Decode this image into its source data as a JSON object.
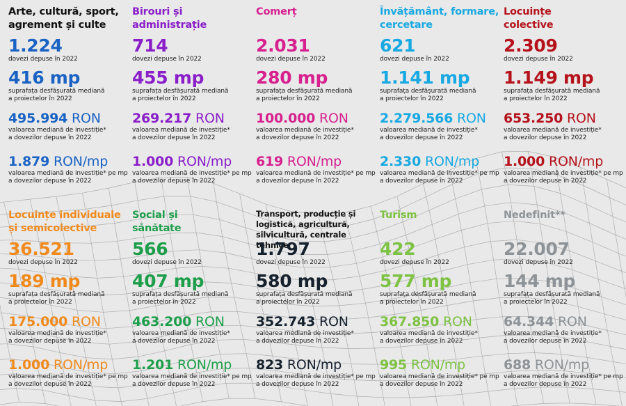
{
  "labels": {
    "dossiers": "dovezi depuse în 2022",
    "area_l1": "suprafața desfășurată mediană",
    "area_l2": "a proiectelor în 2022",
    "value_l1": "valoarea mediană de investiție*",
    "value_l2": "a dovezilor depuse în 2022",
    "persqm_l1": "valoarea mediană de investiție* pe mp",
    "persqm_l2": "a dovezilor depuse în 2022"
  },
  "categories": [
    {
      "title_l1": "Arte, cultură, sport,",
      "title_l2": "agrement și culte",
      "color": "#1a63c4",
      "title_color": "#111111",
      "dossiers": "1.224",
      "area_num": "416",
      "area_unit": "mp",
      "value_num": "495.994",
      "value_unit": "RON",
      "persqm_num": "1.879",
      "persqm_unit": "RON/mp"
    },
    {
      "title_l1": "Birouri și",
      "title_l2": "administrație",
      "color": "#8a1fc9",
      "title_color": "#8a1fc9",
      "dossiers": "714",
      "area_num": "455",
      "area_unit": "mp",
      "value_num": "269.217",
      "value_unit": "RON",
      "persqm_num": "1.000",
      "persqm_unit": "RON/mp"
    },
    {
      "title_l1": "Comerț",
      "title_l2": "",
      "color": "#d6218f",
      "title_color": "#d6218f",
      "dossiers": "2.031",
      "area_num": "280",
      "area_unit": "mp",
      "value_num": "100.000",
      "value_unit": "RON",
      "persqm_num": "619",
      "persqm_unit": "RON/mp"
    },
    {
      "title_l1": "Învățământ, formare,",
      "title_l2": "cercetare",
      "color": "#19a9e2",
      "title_color": "#19a9e2",
      "dossiers": "621",
      "area_num": "1.141",
      "area_unit": "mp",
      "value_num": "2.279.566",
      "value_unit": "RON",
      "persqm_num": "2.330",
      "persqm_unit": "RON/mp"
    },
    {
      "title_l1": "Locuințe",
      "title_l2": "colective",
      "color": "#b5121b",
      "title_color": "#b5121b",
      "dossiers": "2.309",
      "area_num": "1.149",
      "area_unit": "mp",
      "value_num": "653.250",
      "value_unit": "RON",
      "persqm_num": "1.000",
      "persqm_unit": "RON/mp"
    },
    {
      "title_l1": "Locuințe individuale",
      "title_l2": "și semicolective",
      "color": "#f08a1c",
      "title_color": "#f08a1c",
      "dossiers": "36.521",
      "area_num": "189",
      "area_unit": "mp",
      "value_num": "175.000",
      "value_unit": "RON",
      "persqm_num": "1.000",
      "persqm_unit": "RON/mp"
    },
    {
      "title_l1": "Social și",
      "title_l2": "sănătate",
      "color": "#1d9e4a",
      "title_color": "#1d9e4a",
      "dossiers": "566",
      "area_num": "407",
      "area_unit": "mp",
      "value_num": "463.200",
      "value_unit": "RON",
      "persqm_num": "1.201",
      "persqm_unit": "RON/mp"
    },
    {
      "title_l1": "Transport, producție și",
      "title_l2": "logistică, agricultură,",
      "title_l3": "silvicultură, centrale tehnice",
      "color": "#16212e",
      "title_color": "#111111",
      "dossiers": "1.797",
      "area_num": "580",
      "area_unit": "mp",
      "value_num": "352.743",
      "value_unit": "RON",
      "persqm_num": "823",
      "persqm_unit": "RON/mp"
    },
    {
      "title_l1": "Turism",
      "title_l2": "",
      "color": "#7dc242",
      "title_color": "#7dc242",
      "dossiers": "422",
      "area_num": "577",
      "area_unit": "mp",
      "value_num": "367.850",
      "value_unit": "RON",
      "persqm_num": "995",
      "persqm_unit": "RON/mp"
    },
    {
      "title_l1": "Nedefinit**",
      "title_l2": "",
      "color": "#8e9397",
      "title_color": "#8e9397",
      "dossiers": "22.007",
      "area_num": "144",
      "area_unit": "mp",
      "value_num": "64.344",
      "value_unit": "RON",
      "persqm_num": "688",
      "persqm_unit": "RON/mp"
    }
  ]
}
